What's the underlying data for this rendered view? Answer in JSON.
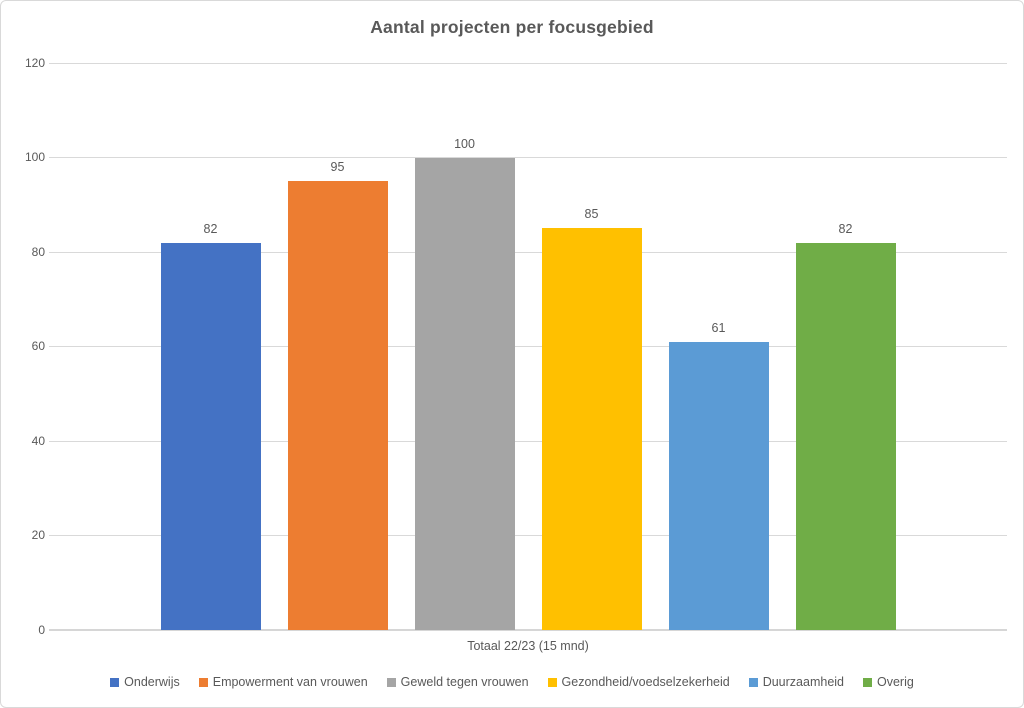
{
  "chart": {
    "title": "Aantal projecten per focusgebied",
    "category_label": "Totaal 22/23 (15 mnd)",
    "text_color": "#595959",
    "gridline_color": "#d9d9d9",
    "frame_border_color": "#d9d9d9",
    "background_color": "#ffffff"
  },
  "chart_data": {
    "type": "bar",
    "title": "Aantal projecten per focusgebied",
    "categories": [
      "Totaal 22/23 (15 mnd)"
    ],
    "series": [
      {
        "name": "Onderwijs",
        "values": [
          82
        ],
        "color": "#4472C4"
      },
      {
        "name": "Empowerment van vrouwen",
        "values": [
          95
        ],
        "color": "#ED7D31"
      },
      {
        "name": "Geweld tegen vrouwen",
        "values": [
          100
        ],
        "color": "#A5A5A5"
      },
      {
        "name": "Gezondheid/voedselzekerheid",
        "values": [
          85
        ],
        "color": "#FFC000"
      },
      {
        "name": "Duurzaamheid",
        "values": [
          61
        ],
        "color": "#5B9BD5"
      },
      {
        "name": "Overig",
        "values": [
          82
        ],
        "color": "#70AD47"
      }
    ],
    "xlabel": "",
    "ylabel": "",
    "ylim": [
      0,
      120
    ],
    "y_ticks": [
      0,
      20,
      40,
      60,
      80,
      100,
      120
    ],
    "grid": true,
    "legend_position": "bottom",
    "data_labels": true
  }
}
